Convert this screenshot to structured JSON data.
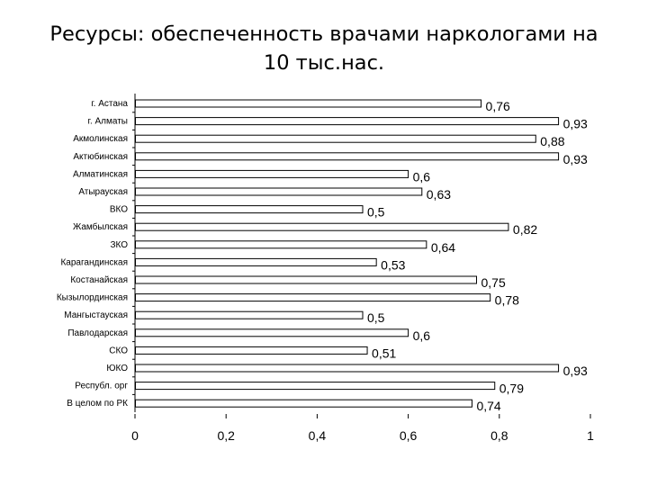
{
  "title_line1": "Ресурсы: обеспеченность врачами наркологами на",
  "title_line2": "10 тыс.нас.",
  "chart_data": {
    "type": "bar",
    "orientation": "horizontal",
    "title": "Ресурсы: обеспеченность врачами наркологами на 10 тыс.нас.",
    "categories": [
      "г. Астана",
      "г. Алматы",
      "Акмолинская",
      "Актюбинская",
      "Алматинская",
      "Атырауская",
      "ВКО",
      "Жамбылская",
      "ЗКО",
      "Карагандинская",
      "Костанайская",
      "Кызылординская",
      "Мангыстауская",
      "Павлодарская",
      "СКО",
      "ЮКО",
      "Республ. орг",
      "В целом по РК"
    ],
    "values": [
      0.76,
      0.93,
      0.88,
      0.93,
      0.6,
      0.63,
      0.5,
      0.82,
      0.64,
      0.53,
      0.75,
      0.78,
      0.5,
      0.6,
      0.51,
      0.93,
      0.79,
      0.74
    ],
    "value_labels": [
      "0,76",
      "0,93",
      "0,88",
      "0,93",
      "0,6",
      "0,63",
      "0,5",
      "0,82",
      "0,64",
      "0,53",
      "0,75",
      "0,78",
      "0,5",
      "0,6",
      "0,51",
      "0,93",
      "0,79",
      "0,74"
    ],
    "xlim": [
      0,
      1
    ],
    "x_ticks": [
      "0",
      "0,2",
      "0,4",
      "0,6",
      "0,8",
      "1"
    ],
    "xlabel": "",
    "ylabel": "",
    "grid": false,
    "bar_color": "#ffffff",
    "bar_stroke": "#000000"
  }
}
